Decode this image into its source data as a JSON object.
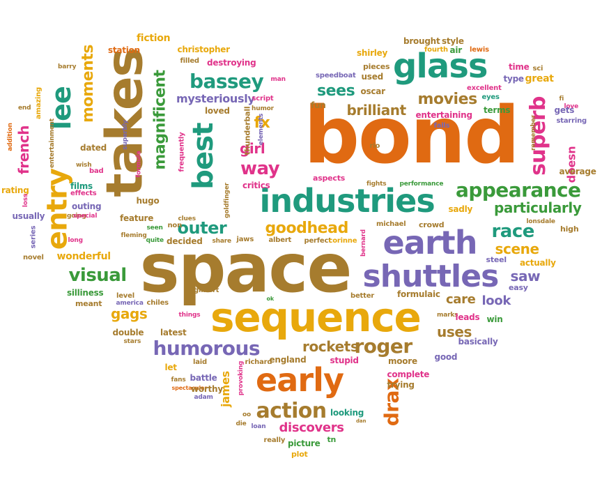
{
  "palette": {
    "orange": "#e06a12",
    "brown": "#a67c2e",
    "gold": "#e8a80c",
    "teal": "#1f9a7d",
    "green": "#3a9a3a",
    "purple": "#7767b5",
    "pink": "#e0338a"
  },
  "words": [
    {
      "text": "bond",
      "color": "orange"
    },
    {
      "text": "space",
      "color": "brown"
    },
    {
      "text": "takes",
      "color": "brown"
    },
    {
      "text": "sequence",
      "color": "gold"
    },
    {
      "text": "glass",
      "color": "teal"
    },
    {
      "text": "industries",
      "color": "teal"
    },
    {
      "text": "earth",
      "color": "purple"
    },
    {
      "text": "shuttles",
      "color": "purple"
    },
    {
      "text": "entry",
      "color": "gold"
    },
    {
      "text": "lee",
      "color": "teal"
    },
    {
      "text": "best",
      "color": "teal"
    },
    {
      "text": "early",
      "color": "orange"
    },
    {
      "text": "appearance",
      "color": "green"
    },
    {
      "text": "humorous",
      "color": "purple"
    },
    {
      "text": "bassey",
      "color": "teal"
    },
    {
      "text": "superb",
      "color": "pink"
    },
    {
      "text": "magnificent",
      "color": "green"
    },
    {
      "text": "moments",
      "color": "gold"
    },
    {
      "text": "french",
      "color": "pink"
    },
    {
      "text": "movies",
      "color": "brown"
    },
    {
      "text": "roger",
      "color": "brown"
    },
    {
      "text": "action",
      "color": "brown"
    },
    {
      "text": "visual",
      "color": "green"
    },
    {
      "text": "race",
      "color": "teal"
    },
    {
      "text": "particularly",
      "color": "green"
    },
    {
      "text": "goodhead",
      "color": "gold"
    },
    {
      "text": "outer",
      "color": "teal"
    },
    {
      "text": "brilliant",
      "color": "brown"
    },
    {
      "text": "girl",
      "color": "pink"
    },
    {
      "text": "way",
      "color": "pink"
    },
    {
      "text": "sees",
      "color": "teal"
    },
    {
      "text": "drax",
      "color": "orange"
    },
    {
      "text": "rockets",
      "color": "brown"
    },
    {
      "text": "gags",
      "color": "gold"
    },
    {
      "text": "discovers",
      "color": "pink"
    },
    {
      "text": "scene",
      "color": "gold"
    },
    {
      "text": "fx",
      "color": "gold"
    },
    {
      "text": "mysteriously",
      "color": "purple"
    },
    {
      "text": "saw",
      "color": "purple"
    },
    {
      "text": "uses",
      "color": "brown"
    },
    {
      "text": "look",
      "color": "purple"
    },
    {
      "text": "care",
      "color": "brown"
    },
    {
      "text": "doesn",
      "color": "pink"
    },
    {
      "text": "industries",
      "color": "teal",
      "skip": true
    },
    {
      "text": "james",
      "color": "gold"
    },
    {
      "text": "fiction",
      "color": "gold"
    },
    {
      "text": "station",
      "color": "orange"
    },
    {
      "text": "christopher",
      "color": "gold"
    },
    {
      "text": "destroying",
      "color": "pink"
    },
    {
      "text": "filled",
      "color": "brown"
    },
    {
      "text": "brought",
      "color": "brown"
    },
    {
      "text": "style",
      "color": "brown"
    },
    {
      "text": "shirley",
      "color": "gold"
    },
    {
      "text": "pieces",
      "color": "brown"
    },
    {
      "text": "used",
      "color": "brown"
    },
    {
      "text": "fourth",
      "color": "gold"
    },
    {
      "text": "air",
      "color": "green"
    },
    {
      "text": "lewis",
      "color": "orange"
    },
    {
      "text": "time",
      "color": "pink"
    },
    {
      "text": "sci",
      "color": "brown"
    },
    {
      "text": "type",
      "color": "purple"
    },
    {
      "text": "great",
      "color": "gold"
    },
    {
      "text": "excellent",
      "color": "pink"
    },
    {
      "text": "eyes",
      "color": "teal"
    },
    {
      "text": "fi",
      "color": "brown"
    },
    {
      "text": "love",
      "color": "pink"
    },
    {
      "text": "gets",
      "color": "purple"
    },
    {
      "text": "starring",
      "color": "purple"
    },
    {
      "text": "average",
      "color": "brown"
    },
    {
      "text": "remember",
      "color": "brown"
    },
    {
      "text": "terms",
      "color": "green"
    },
    {
      "text": "entertaining",
      "color": "pink"
    },
    {
      "text": "falls",
      "color": "purple"
    },
    {
      "text": "fun",
      "color": "brown"
    },
    {
      "text": "oscar",
      "color": "brown"
    },
    {
      "text": "speedboat",
      "color": "purple"
    },
    {
      "text": "man",
      "color": "pink"
    },
    {
      "text": "script",
      "color": "pink"
    },
    {
      "text": "humor",
      "color": "brown"
    },
    {
      "text": "loved",
      "color": "brown"
    },
    {
      "text": "elements",
      "color": "purple"
    },
    {
      "text": "thunderball",
      "color": "brown"
    },
    {
      "text": "barry",
      "color": "brown"
    },
    {
      "text": "amazing",
      "color": "gold"
    },
    {
      "text": "end",
      "color": "brown"
    },
    {
      "text": "entertainment",
      "color": "brown"
    },
    {
      "text": "addition",
      "color": "orange"
    },
    {
      "text": "dated",
      "color": "brown"
    },
    {
      "text": "superbly",
      "color": "purple"
    },
    {
      "text": "frequently",
      "color": "pink"
    },
    {
      "text": "formula",
      "color": "pink"
    },
    {
      "text": "wish",
      "color": "brown"
    },
    {
      "text": "bad",
      "color": "pink"
    },
    {
      "text": "rio",
      "color": "brown"
    },
    {
      "text": "critics",
      "color": "pink"
    },
    {
      "text": "aspects",
      "color": "pink"
    },
    {
      "text": "fights",
      "color": "brown"
    },
    {
      "text": "performance",
      "color": "green"
    },
    {
      "text": "sadly",
      "color": "gold"
    },
    {
      "text": "lonsdale",
      "color": "brown"
    },
    {
      "text": "high",
      "color": "brown"
    },
    {
      "text": "rating",
      "color": "gold"
    },
    {
      "text": "films",
      "color": "teal"
    },
    {
      "text": "effects",
      "color": "pink"
    },
    {
      "text": "loss",
      "color": "pink"
    },
    {
      "text": "usually",
      "color": "purple"
    },
    {
      "text": "hugo",
      "color": "brown"
    },
    {
      "text": "outing",
      "color": "purple"
    },
    {
      "text": "going",
      "color": "brown"
    },
    {
      "text": "goldfinger",
      "color": "brown"
    },
    {
      "text": "feature",
      "color": "brown"
    },
    {
      "text": "special",
      "color": "pink"
    },
    {
      "text": "clues",
      "color": "brown"
    },
    {
      "text": "seen",
      "color": "green"
    },
    {
      "text": "non",
      "color": "brown"
    },
    {
      "text": "quite",
      "color": "green"
    },
    {
      "text": "decided",
      "color": "brown"
    },
    {
      "text": "share",
      "color": "brown"
    },
    {
      "text": "fleming",
      "color": "brown"
    },
    {
      "text": "long",
      "color": "pink"
    },
    {
      "text": "series",
      "color": "purple"
    },
    {
      "text": "novel",
      "color": "brown"
    },
    {
      "text": "wonderful",
      "color": "gold"
    },
    {
      "text": "jaws",
      "color": "brown"
    },
    {
      "text": "albert",
      "color": "brown"
    },
    {
      "text": "perfect",
      "color": "brown"
    },
    {
      "text": "corinne",
      "color": "gold"
    },
    {
      "text": "michael",
      "color": "brown"
    },
    {
      "text": "crowd",
      "color": "brown"
    },
    {
      "text": "bernard",
      "color": "pink"
    },
    {
      "text": "actually",
      "color": "gold"
    },
    {
      "text": "steel",
      "color": "purple"
    },
    {
      "text": "easy",
      "color": "purple"
    },
    {
      "text": "silliness",
      "color": "green"
    },
    {
      "text": "meant",
      "color": "brown"
    },
    {
      "text": "level",
      "color": "brown"
    },
    {
      "text": "america",
      "color": "purple"
    },
    {
      "text": "chiles",
      "color": "brown"
    },
    {
      "text": "gilbert",
      "color": "brown"
    },
    {
      "text": "things",
      "color": "pink"
    },
    {
      "text": "ok",
      "color": "green"
    },
    {
      "text": "better",
      "color": "brown"
    },
    {
      "text": "formulaic",
      "color": "brown"
    },
    {
      "text": "marks",
      "color": "brown"
    },
    {
      "text": "leads",
      "color": "pink"
    },
    {
      "text": "win",
      "color": "green"
    },
    {
      "text": "basically",
      "color": "purple"
    },
    {
      "text": "double",
      "color": "brown"
    },
    {
      "text": "latest",
      "color": "brown"
    },
    {
      "text": "stars",
      "color": "brown"
    },
    {
      "text": "let",
      "color": "gold"
    },
    {
      "text": "laid",
      "color": "brown"
    },
    {
      "text": "richard",
      "color": "brown"
    },
    {
      "text": "england",
      "color": "brown"
    },
    {
      "text": "stupid",
      "color": "pink"
    },
    {
      "text": "moore",
      "color": "brown"
    },
    {
      "text": "good",
      "color": "purple"
    },
    {
      "text": "fans",
      "color": "brown"
    },
    {
      "text": "battle",
      "color": "purple"
    },
    {
      "text": "spectacular",
      "color": "orange"
    },
    {
      "text": "worthy",
      "color": "brown"
    },
    {
      "text": "provoking",
      "color": "pink"
    },
    {
      "text": "adam",
      "color": "purple"
    },
    {
      "text": "complete",
      "color": "pink"
    },
    {
      "text": "trying",
      "color": "brown"
    },
    {
      "text": "oo",
      "color": "brown"
    },
    {
      "text": "die",
      "color": "brown"
    },
    {
      "text": "loan",
      "color": "purple"
    },
    {
      "text": "looking",
      "color": "teal"
    },
    {
      "text": "really",
      "color": "brown"
    },
    {
      "text": "picture",
      "color": "green"
    },
    {
      "text": "tn",
      "color": "green"
    },
    {
      "text": "plot",
      "color": "gold"
    },
    {
      "text": "dan",
      "color": "brown"
    }
  ]
}
